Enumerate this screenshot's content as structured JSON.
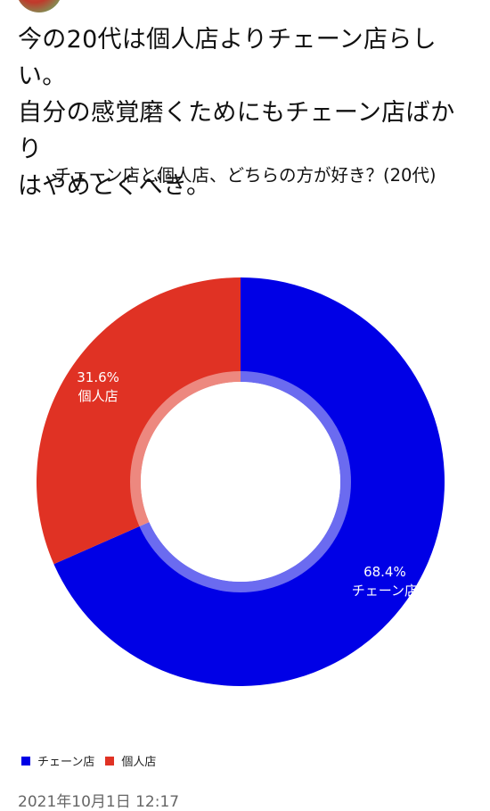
{
  "tweet": {
    "text": "今の20代は個人店よりチェーン店らしい。\n自分の感覚磨くためにもチェーン店ばかり\nはやめとくべき。",
    "timestamp": "2021年10月1日 12:17"
  },
  "colors": {
    "chain": "#0000e6",
    "individual": "#e03224",
    "inner_ring": "#ffffff"
  },
  "chart_data": {
    "type": "pie",
    "title": "チェーン店と個人店、どちらの方が好き？(20代)",
    "categories": [
      "チェーン店",
      "個人店"
    ],
    "values": [
      68.4,
      31.6
    ],
    "value_labels": [
      "68.4%",
      "31.6%"
    ],
    "donut": true,
    "legend": "bottom-left"
  }
}
